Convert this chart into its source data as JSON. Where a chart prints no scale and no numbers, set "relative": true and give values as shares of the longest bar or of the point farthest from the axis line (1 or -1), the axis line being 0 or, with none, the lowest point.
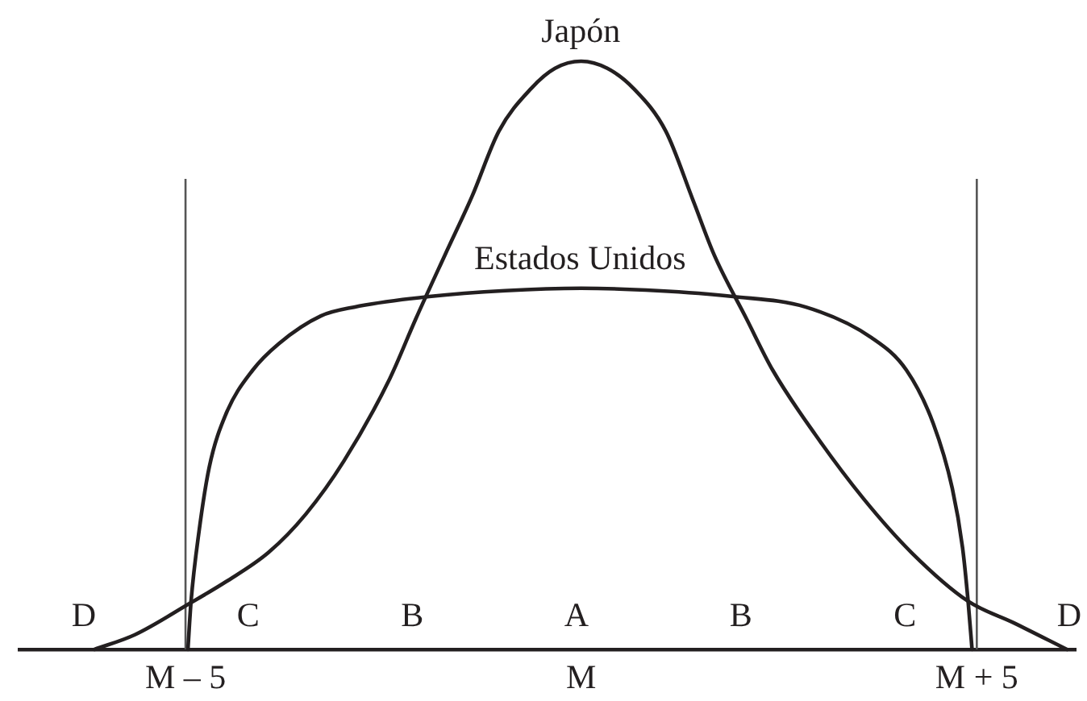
{
  "chart_data": {
    "type": "line",
    "relative": true,
    "series": [
      {
        "name": "Japón",
        "color": "#231f20",
        "x": [
          -6.15,
          -5.64,
          -4.95,
          -4.49,
          -3.95,
          -3.48,
          -3,
          -2.42,
          -2.09,
          -1.72,
          -1.38,
          -1.04,
          -0.63,
          -0.33,
          0,
          0.33,
          0.66,
          1.07,
          1.41,
          1.68,
          2.09,
          2.42,
          2.96,
          3.57,
          4.18,
          4.89,
          5.47,
          6.14
        ],
        "values": [
          0,
          0.025,
          0.078,
          0.115,
          0.165,
          0.23,
          0.32,
          0.46,
          0.562,
          0.671,
          0.77,
          0.881,
          0.954,
          0.988,
          1,
          0.988,
          0.954,
          0.881,
          0.765,
          0.671,
          0.562,
          0.475,
          0.365,
          0.256,
          0.164,
          0.082,
          0.045,
          0
        ]
      },
      {
        "name": "Estados Unidos",
        "color": "#231f20",
        "x": [
          -4.97,
          -4.93,
          -4.83,
          -4.7,
          -4.49,
          -4.15,
          -3.82,
          -3.29,
          -2.87,
          -1.92,
          -0.96,
          0,
          0.96,
          1.92,
          2.84,
          3.67,
          4.11,
          4.45,
          4.69,
          4.82,
          4.89,
          4.94
        ],
        "values": [
          0,
          0.082,
          0.2,
          0.31,
          0.4,
          0.475,
          0.52,
          0.567,
          0.582,
          0.6,
          0.61,
          0.614,
          0.61,
          0.6,
          0.582,
          0.53,
          0.475,
          0.384,
          0.274,
          0.173,
          0.082,
          0
        ]
      }
    ],
    "xlim": [
      -7.1,
      6.25
    ],
    "xticks": [
      {
        "value": -5,
        "label": "M – 5"
      },
      {
        "value": 0,
        "label": "M"
      },
      {
        "value": 5,
        "label": "M + 5"
      }
    ],
    "ref_lines": [
      {
        "axis": "x",
        "value": -5,
        "color": "#555555"
      },
      {
        "axis": "x",
        "value": 5,
        "color": "#555555"
      }
    ],
    "annotations": [
      "D",
      "C",
      "B",
      "A",
      "B",
      "C",
      "D"
    ],
    "legend": false,
    "grid": false,
    "marker": "none",
    "line_style": "solid"
  }
}
